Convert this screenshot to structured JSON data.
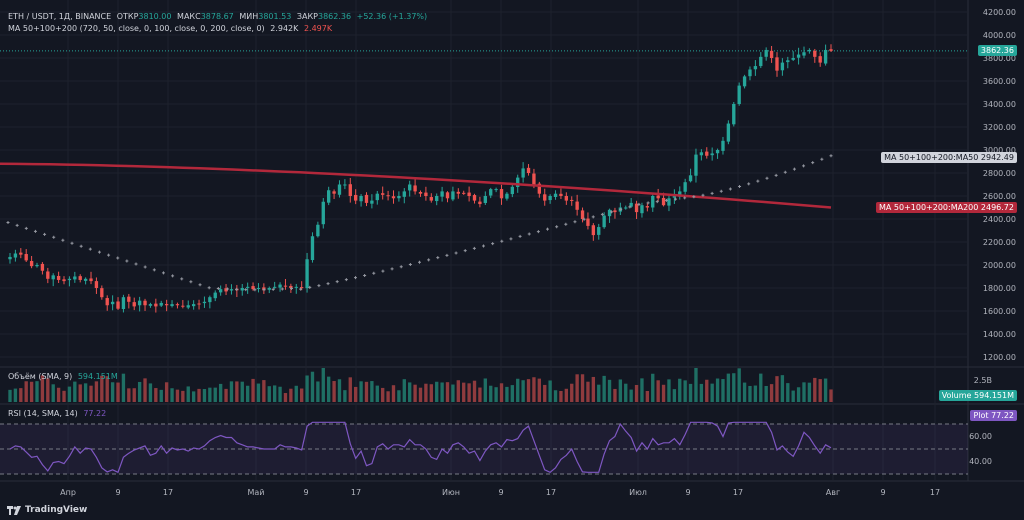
{
  "header": {
    "symbol": "ETH / USDT, 1Д, BINANCE",
    "open_label": "ОТКР",
    "open_value": "3810.00",
    "high_label": "МАКС",
    "high_value": "3878.67",
    "low_label": "МИН",
    "low_value": "3801.53",
    "close_label": "ЗАКР",
    "close_value": "3862.36",
    "change": "+52.36 (+1.37%)"
  },
  "ma_legend": {
    "label": "MA 50+100+200 (720, 50, close, 0, 100, close, 0, 200, close, 0)",
    "value1": "2.942K",
    "value2": "2.497K"
  },
  "volume_legend": {
    "label": "Объём (SMA, 9)",
    "value": "594.151M"
  },
  "rsi_legend": {
    "label": "RSI (14, SMA, 14)",
    "value": "77.22"
  },
  "price_axis": [
    "4200.00",
    "4000.00",
    "3800.00",
    "3600.00",
    "3400.00",
    "3200.00",
    "3000.00",
    "2800.00",
    "2600.00",
    "2400.00",
    "2200.00",
    "2000.00",
    "1800.00",
    "1600.00",
    "1400.00",
    "1200.00"
  ],
  "price_tag": "3862.36",
  "ma50_tag": {
    "label": "MA 50+100+200:MA50",
    "value": "2942.49"
  },
  "ma200_tag": {
    "label": "MA 50+100+200:MA200",
    "value": "2496.72"
  },
  "volume_axis": "2.5B",
  "volume_tag": {
    "label": "Volume",
    "value": "594.151M"
  },
  "rsi_axis": [
    "60.00",
    "40.00"
  ],
  "rsi_tag": {
    "label": "Plot",
    "value": "77.22"
  },
  "time_axis": [
    "Апр",
    "9",
    "17",
    "Май",
    "9",
    "17",
    "Июн",
    "9",
    "17",
    "Июл",
    "9",
    "17",
    "Авг",
    "9",
    "17"
  ],
  "brand": "TradingView",
  "colors": {
    "up": "#26a69a",
    "down": "#ef5350",
    "ma200": "#b2283b",
    "ma50": "#9598a1",
    "rsi": "#7e57c2",
    "bg": "#131722"
  },
  "chart_data": {
    "type": "candlestick",
    "price_range": [
      1200,
      4200
    ],
    "closes": [
      2070,
      2100,
      2090,
      2040,
      1990,
      2000,
      1950,
      1880,
      1910,
      1870,
      1860,
      1880,
      1900,
      1870,
      1880,
      1860,
      1800,
      1720,
      1650,
      1680,
      1620,
      1720,
      1680,
      1640,
      1690,
      1650,
      1660,
      1640,
      1670,
      1650,
      1660,
      1650,
      1640,
      1650,
      1660,
      1660,
      1680,
      1720,
      1760,
      1790,
      1770,
      1790,
      1780,
      1800,
      1810,
      1790,
      1800,
      1780,
      1800,
      1810,
      1830,
      1820,
      1800,
      1810,
      1800,
      2050,
      2250,
      2350,
      2550,
      2650,
      2620,
      2700,
      2700,
      2600,
      2560,
      2600,
      2540,
      2560,
      2620,
      2610,
      2600,
      2580,
      2600,
      2640,
      2700,
      2640,
      2620,
      2600,
      2560,
      2600,
      2640,
      2580,
      2640,
      2620,
      2620,
      2600,
      2560,
      2530,
      2600,
      2660,
      2660,
      2580,
      2620,
      2680,
      2760,
      2840,
      2800,
      2700,
      2620,
      2560,
      2600,
      2620,
      2600,
      2560,
      2560,
      2480,
      2400,
      2340,
      2260,
      2330,
      2430,
      2480,
      2460,
      2500,
      2500,
      2540,
      2460,
      2520,
      2500,
      2600,
      2580,
      2520,
      2580,
      2600,
      2640,
      2720,
      2780,
      2960,
      2980,
      2950,
      2970,
      3000,
      3080,
      3230,
      3400,
      3560,
      3640,
      3700,
      3730,
      3810,
      3870,
      3800,
      3690,
      3760,
      3780,
      3800,
      3830,
      3850,
      3870,
      3810,
      3760,
      3870,
      3862
    ]
  }
}
